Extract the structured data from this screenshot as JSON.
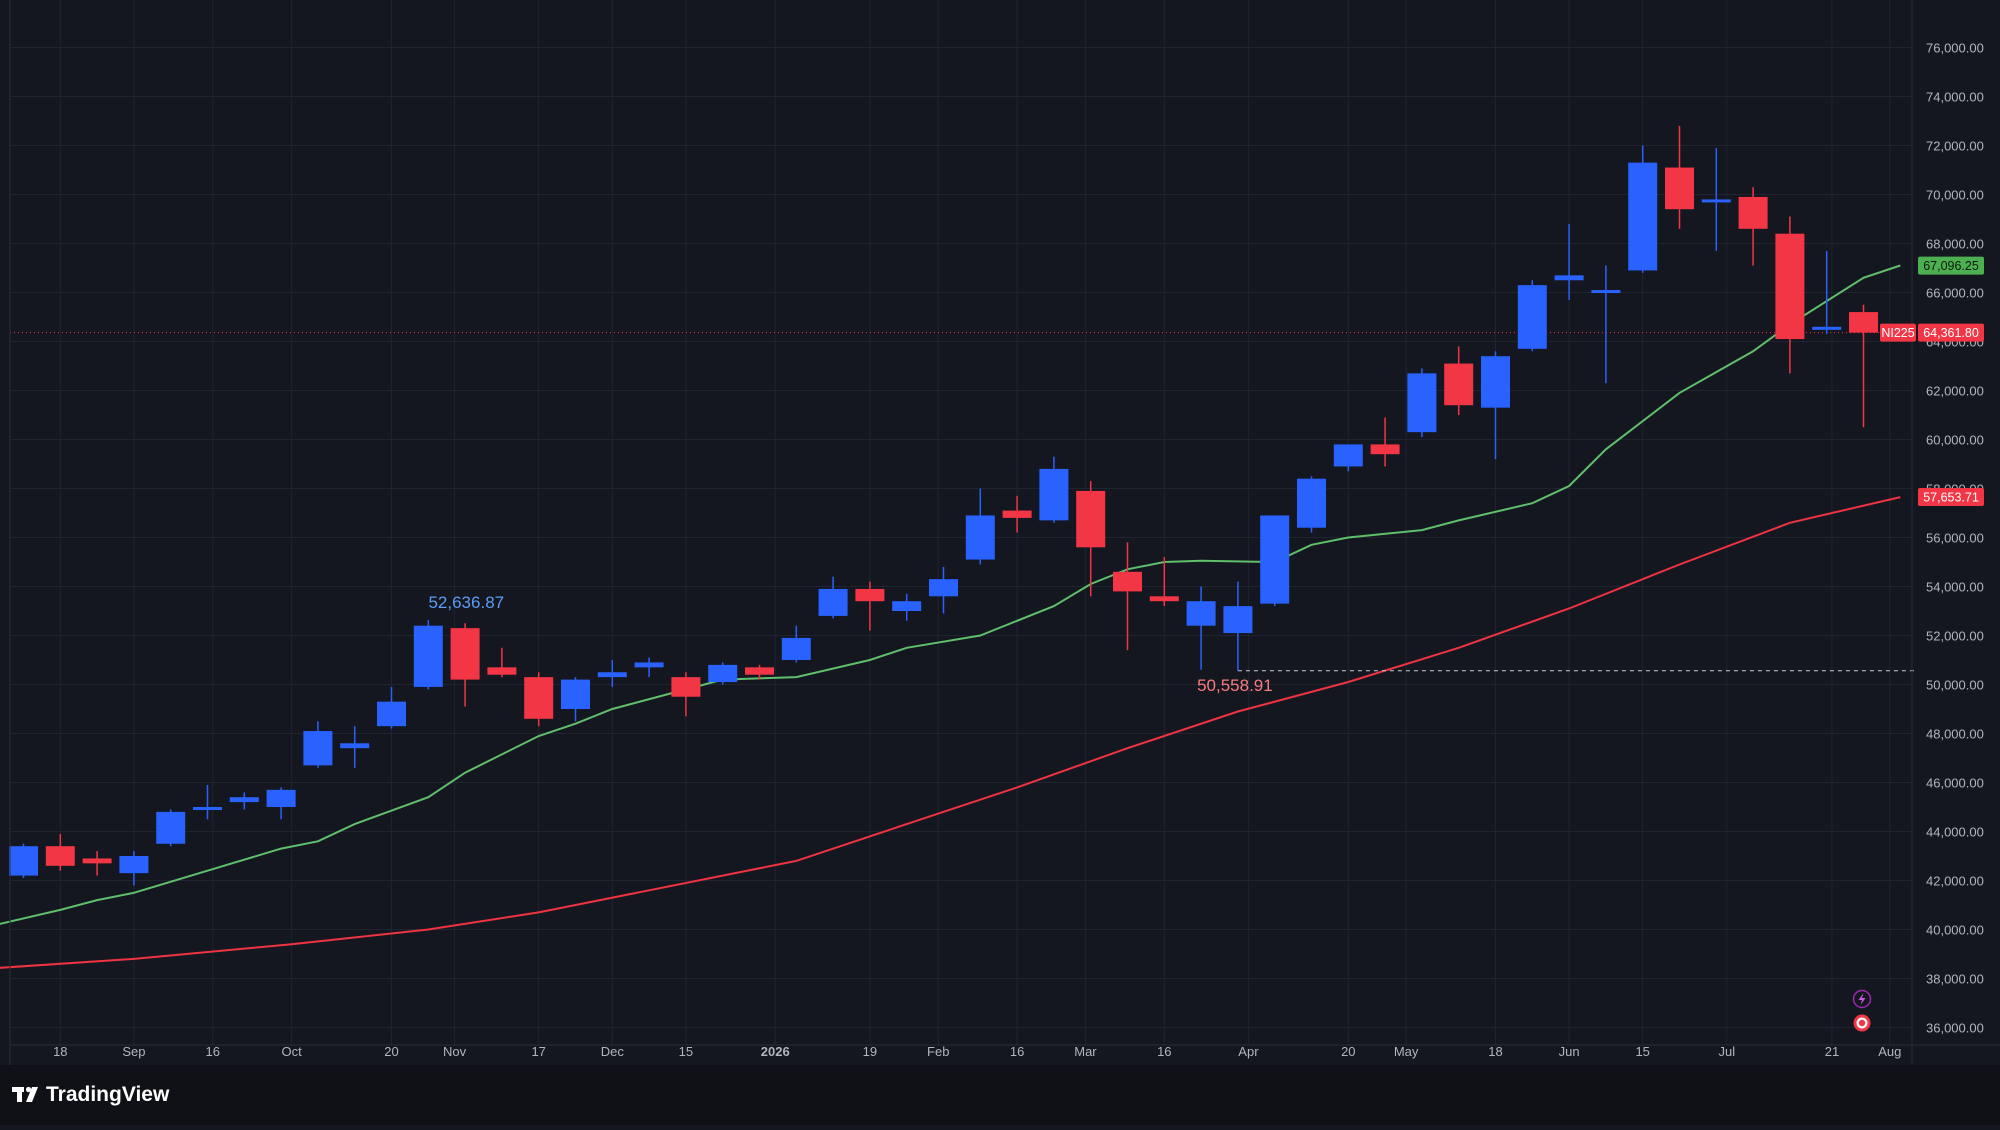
{
  "brand": {
    "name": "TradingView"
  },
  "colors": {
    "background": "#141720",
    "footer": "#0f1116",
    "grid": "#1f2430",
    "bull": "#2962ff",
    "bear": "#f23645",
    "sma_short": "#5fbf6a",
    "sma_long": "#ef3340",
    "axis_text": "#b2b5be",
    "price_line": "#f23645",
    "high_label": "#5b9cf6",
    "low_label": "#f77c80"
  },
  "icons": {
    "flash": "lightning-bolt-icon",
    "record": "record-circle-icon"
  },
  "chart_data": {
    "type": "candlestick",
    "symbol": "NI225",
    "ylim": [
      35000,
      76000
    ],
    "yticks": [
      36000,
      38000,
      40000,
      42000,
      44000,
      46000,
      48000,
      50000,
      52000,
      54000,
      56000,
      58000,
      60000,
      62000,
      64000,
      66000,
      68000,
      70000,
      72000,
      74000,
      76000
    ],
    "ytick_labels": [
      "36,000.00",
      "38,000.00",
      "40,000.00",
      "42,000.00",
      "44,000.00",
      "46,000.00",
      "48,000.00",
      "50,000.00",
      "52,000.00",
      "54,000.00",
      "56,000.00",
      "58,000.00",
      "60,000.00",
      "62,000.00",
      "64,000.00",
      "66,000.00",
      "68,000.00",
      "70,000.00",
      "72,000.00",
      "74,000.00",
      "76,000.00"
    ],
    "xticks": [
      {
        "label": "18",
        "date": "2025-08-18"
      },
      {
        "label": "Sep",
        "date": "2025-09-01"
      },
      {
        "label": "16",
        "date": "2025-09-16"
      },
      {
        "label": "Oct",
        "date": "2025-10-01"
      },
      {
        "label": "20",
        "date": "2025-10-20"
      },
      {
        "label": "Nov",
        "date": "2025-11-01"
      },
      {
        "label": "17",
        "date": "2025-11-17"
      },
      {
        "label": "Dec",
        "date": "2025-12-01"
      },
      {
        "label": "15",
        "date": "2025-12-15"
      },
      {
        "label": "2026",
        "date": "2026-01-01"
      },
      {
        "label": "19",
        "date": "2026-01-19"
      },
      {
        "label": "Feb",
        "date": "2026-02-01"
      },
      {
        "label": "16",
        "date": "2026-02-16"
      },
      {
        "label": "Mar",
        "date": "2026-03-01"
      },
      {
        "label": "16",
        "date": "2026-03-16"
      },
      {
        "label": "Apr",
        "date": "2026-04-01"
      },
      {
        "label": "20",
        "date": "2026-04-20"
      },
      {
        "label": "May",
        "date": "2026-05-01"
      },
      {
        "label": "18",
        "date": "2026-05-18"
      },
      {
        "label": "Jun",
        "date": "2026-06-01"
      },
      {
        "label": "15",
        "date": "2026-06-15"
      },
      {
        "label": "Jul",
        "date": "2026-07-01"
      },
      {
        "label": "21",
        "date": "2026-07-21"
      },
      {
        "label": "Aug",
        "date": "2026-08-01"
      }
    ],
    "candles": [
      {
        "date": "2025-08-11",
        "open": 42200,
        "high": 43500,
        "low": 42100,
        "close": 43400
      },
      {
        "date": "2025-08-18",
        "open": 43400,
        "high": 43900,
        "low": 42400,
        "close": 42600
      },
      {
        "date": "2025-08-25",
        "open": 42900,
        "high": 43200,
        "low": 42200,
        "close": 42700
      },
      {
        "date": "2025-09-01",
        "open": 42300,
        "high": 43200,
        "low": 41800,
        "close": 43000
      },
      {
        "date": "2025-09-08",
        "open": 43500,
        "high": 44900,
        "low": 43400,
        "close": 44800
      },
      {
        "date": "2025-09-15",
        "open": 44900,
        "high": 45900,
        "low": 44500,
        "close": 45000
      },
      {
        "date": "2025-09-22",
        "open": 45200,
        "high": 45600,
        "low": 44900,
        "close": 45400
      },
      {
        "date": "2025-09-29",
        "open": 45000,
        "high": 45800,
        "low": 44500,
        "close": 45700
      },
      {
        "date": "2025-10-06",
        "open": 46700,
        "high": 48500,
        "low": 46600,
        "close": 48100
      },
      {
        "date": "2025-10-13",
        "open": 47400,
        "high": 48300,
        "low": 46600,
        "close": 47600
      },
      {
        "date": "2025-10-20",
        "open": 48300,
        "high": 49900,
        "low": 48200,
        "close": 49300
      },
      {
        "date": "2025-10-27",
        "open": 49900,
        "high": 52637,
        "low": 49800,
        "close": 52400
      },
      {
        "date": "2025-11-03",
        "open": 52300,
        "high": 52500,
        "low": 49100,
        "close": 50200
      },
      {
        "date": "2025-11-10",
        "open": 50700,
        "high": 51500,
        "low": 50300,
        "close": 50400
      },
      {
        "date": "2025-11-17",
        "open": 50300,
        "high": 50500,
        "low": 48300,
        "close": 48600
      },
      {
        "date": "2025-11-24",
        "open": 49000,
        "high": 50300,
        "low": 48500,
        "close": 50200
      },
      {
        "date": "2025-12-01",
        "open": 50300,
        "high": 51000,
        "low": 49900,
        "close": 50500
      },
      {
        "date": "2025-12-08",
        "open": 50700,
        "high": 51100,
        "low": 50300,
        "close": 50900
      },
      {
        "date": "2025-12-15",
        "open": 50300,
        "high": 50500,
        "low": 48700,
        "close": 49500
      },
      {
        "date": "2025-12-22",
        "open": 50100,
        "high": 50900,
        "low": 50000,
        "close": 50800
      },
      {
        "date": "2025-12-29",
        "open": 50700,
        "high": 50800,
        "low": 50200,
        "close": 50400
      },
      {
        "date": "2026-01-05",
        "open": 51000,
        "high": 52400,
        "low": 50900,
        "close": 51900
      },
      {
        "date": "2026-01-12",
        "open": 52800,
        "high": 54400,
        "low": 52700,
        "close": 53900
      },
      {
        "date": "2026-01-19",
        "open": 53900,
        "high": 54200,
        "low": 52200,
        "close": 53400
      },
      {
        "date": "2026-01-26",
        "open": 53000,
        "high": 53700,
        "low": 52600,
        "close": 53400
      },
      {
        "date": "2026-02-02",
        "open": 53600,
        "high": 54800,
        "low": 52900,
        "close": 54300
      },
      {
        "date": "2026-02-09",
        "open": 55100,
        "high": 58000,
        "low": 54900,
        "close": 56900
      },
      {
        "date": "2026-02-16",
        "open": 57100,
        "high": 57700,
        "low": 56200,
        "close": 56800
      },
      {
        "date": "2026-02-23",
        "open": 56700,
        "high": 59300,
        "low": 56600,
        "close": 58800
      },
      {
        "date": "2026-03-02",
        "open": 57900,
        "high": 58300,
        "low": 53600,
        "close": 55600
      },
      {
        "date": "2026-03-09",
        "open": 54600,
        "high": 55800,
        "low": 51400,
        "close": 53800
      },
      {
        "date": "2026-03-16",
        "open": 53600,
        "high": 55200,
        "low": 53200,
        "close": 53400
      },
      {
        "date": "2026-03-23",
        "open": 52400,
        "high": 54000,
        "low": 50600,
        "close": 53400
      },
      {
        "date": "2026-03-30",
        "open": 52100,
        "high": 54200,
        "low": 50559,
        "close": 53200
      },
      {
        "date": "2026-04-06",
        "open": 53300,
        "high": 56900,
        "low": 53200,
        "close": 56900
      },
      {
        "date": "2026-04-13",
        "open": 56400,
        "high": 58500,
        "low": 56200,
        "close": 58400
      },
      {
        "date": "2026-04-20",
        "open": 58900,
        "high": 59800,
        "low": 58700,
        "close": 59800
      },
      {
        "date": "2026-04-27",
        "open": 59800,
        "high": 60900,
        "low": 58900,
        "close": 59400
      },
      {
        "date": "2026-05-04",
        "open": 60300,
        "high": 62900,
        "low": 60100,
        "close": 62700
      },
      {
        "date": "2026-05-11",
        "open": 63100,
        "high": 63800,
        "low": 61000,
        "close": 61400
      },
      {
        "date": "2026-05-18",
        "open": 61300,
        "high": 63600,
        "low": 59200,
        "close": 63400
      },
      {
        "date": "2026-05-25",
        "open": 63700,
        "high": 66500,
        "low": 63600,
        "close": 66300
      },
      {
        "date": "2026-06-01",
        "open": 66500,
        "high": 68800,
        "low": 65700,
        "close": 66700
      },
      {
        "date": "2026-06-08",
        "open": 66000,
        "high": 67100,
        "low": 62300,
        "close": 66100
      },
      {
        "date": "2026-06-15",
        "open": 66900,
        "high": 72000,
        "low": 66800,
        "close": 71300
      },
      {
        "date": "2026-06-22",
        "open": 71100,
        "high": 72800,
        "low": 68600,
        "close": 69400
      },
      {
        "date": "2026-06-29",
        "open": 69700,
        "high": 71900,
        "low": 67700,
        "close": 69800
      },
      {
        "date": "2026-07-06",
        "open": 69900,
        "high": 70300,
        "low": 67100,
        "close": 68600
      },
      {
        "date": "2026-07-13",
        "open": 68400,
        "high": 69100,
        "low": 62700,
        "close": 64100
      },
      {
        "date": "2026-07-20",
        "open": 64500,
        "high": 67700,
        "low": 64300,
        "close": 64600
      },
      {
        "date": "2026-07-27",
        "open": 65200,
        "high": 65500,
        "low": 60500,
        "close": 64362
      }
    ],
    "sma_short": {
      "last_value": 67096.25,
      "last_label": "67,096.25",
      "points": [
        {
          "date": "2025-08-04",
          "value": 40100
        },
        {
          "date": "2025-08-18",
          "value": 40800
        },
        {
          "date": "2025-08-25",
          "value": 41200
        },
        {
          "date": "2025-09-01",
          "value": 41500
        },
        {
          "date": "2025-09-15",
          "value": 42400
        },
        {
          "date": "2025-09-29",
          "value": 43300
        },
        {
          "date": "2025-10-06",
          "value": 43600
        },
        {
          "date": "2025-10-13",
          "value": 44300
        },
        {
          "date": "2025-10-27",
          "value": 45400
        },
        {
          "date": "2025-11-03",
          "value": 46400
        },
        {
          "date": "2025-11-17",
          "value": 47900
        },
        {
          "date": "2025-11-24",
          "value": 48400
        },
        {
          "date": "2025-12-01",
          "value": 49000
        },
        {
          "date": "2025-12-15",
          "value": 49800
        },
        {
          "date": "2025-12-22",
          "value": 50200
        },
        {
          "date": "2026-01-05",
          "value": 50300
        },
        {
          "date": "2026-01-19",
          "value": 51000
        },
        {
          "date": "2026-01-26",
          "value": 51500
        },
        {
          "date": "2026-02-09",
          "value": 52000
        },
        {
          "date": "2026-02-23",
          "value": 53200
        },
        {
          "date": "2026-03-02",
          "value": 54100
        },
        {
          "date": "2026-03-09",
          "value": 54700
        },
        {
          "date": "2026-03-16",
          "value": 55000
        },
        {
          "date": "2026-03-23",
          "value": 55050
        },
        {
          "date": "2026-04-06",
          "value": 55000
        },
        {
          "date": "2026-04-13",
          "value": 55700
        },
        {
          "date": "2026-04-20",
          "value": 56000
        },
        {
          "date": "2026-05-04",
          "value": 56300
        },
        {
          "date": "2026-05-11",
          "value": 56700
        },
        {
          "date": "2026-05-25",
          "value": 57400
        },
        {
          "date": "2026-06-01",
          "value": 58100
        },
        {
          "date": "2026-06-08",
          "value": 59600
        },
        {
          "date": "2026-06-22",
          "value": 61900
        },
        {
          "date": "2026-07-06",
          "value": 63600
        },
        {
          "date": "2026-07-13",
          "value": 64700
        },
        {
          "date": "2026-07-27",
          "value": 66600
        },
        {
          "date": "2026-08-03",
          "value": 67100
        }
      ]
    },
    "sma_long": {
      "last_value": 57653.71,
      "last_label": "57,653.71",
      "points": [
        {
          "date": "2025-08-04",
          "value": 38400
        },
        {
          "date": "2025-09-01",
          "value": 38800
        },
        {
          "date": "2025-10-01",
          "value": 39400
        },
        {
          "date": "2025-10-27",
          "value": 40000
        },
        {
          "date": "2025-11-17",
          "value": 40700
        },
        {
          "date": "2025-12-08",
          "value": 41600
        },
        {
          "date": "2026-01-05",
          "value": 42800
        },
        {
          "date": "2026-01-26",
          "value": 44300
        },
        {
          "date": "2026-02-16",
          "value": 45800
        },
        {
          "date": "2026-03-09",
          "value": 47400
        },
        {
          "date": "2026-03-30",
          "value": 48900
        },
        {
          "date": "2026-04-20",
          "value": 50100
        },
        {
          "date": "2026-05-11",
          "value": 51500
        },
        {
          "date": "2026-06-01",
          "value": 53100
        },
        {
          "date": "2026-06-22",
          "value": 54900
        },
        {
          "date": "2026-07-13",
          "value": 56600
        },
        {
          "date": "2026-08-03",
          "value": 57650
        }
      ]
    },
    "last_price": {
      "symbol": "NI225",
      "value": 64361.8,
      "label": "64,361.80"
    },
    "high_marker": {
      "date": "2025-10-27",
      "value": 52636.87,
      "label": "52,636.87"
    },
    "low_marker": {
      "date": "2026-03-30",
      "value": 50558.91,
      "label": "50,558.91"
    }
  }
}
